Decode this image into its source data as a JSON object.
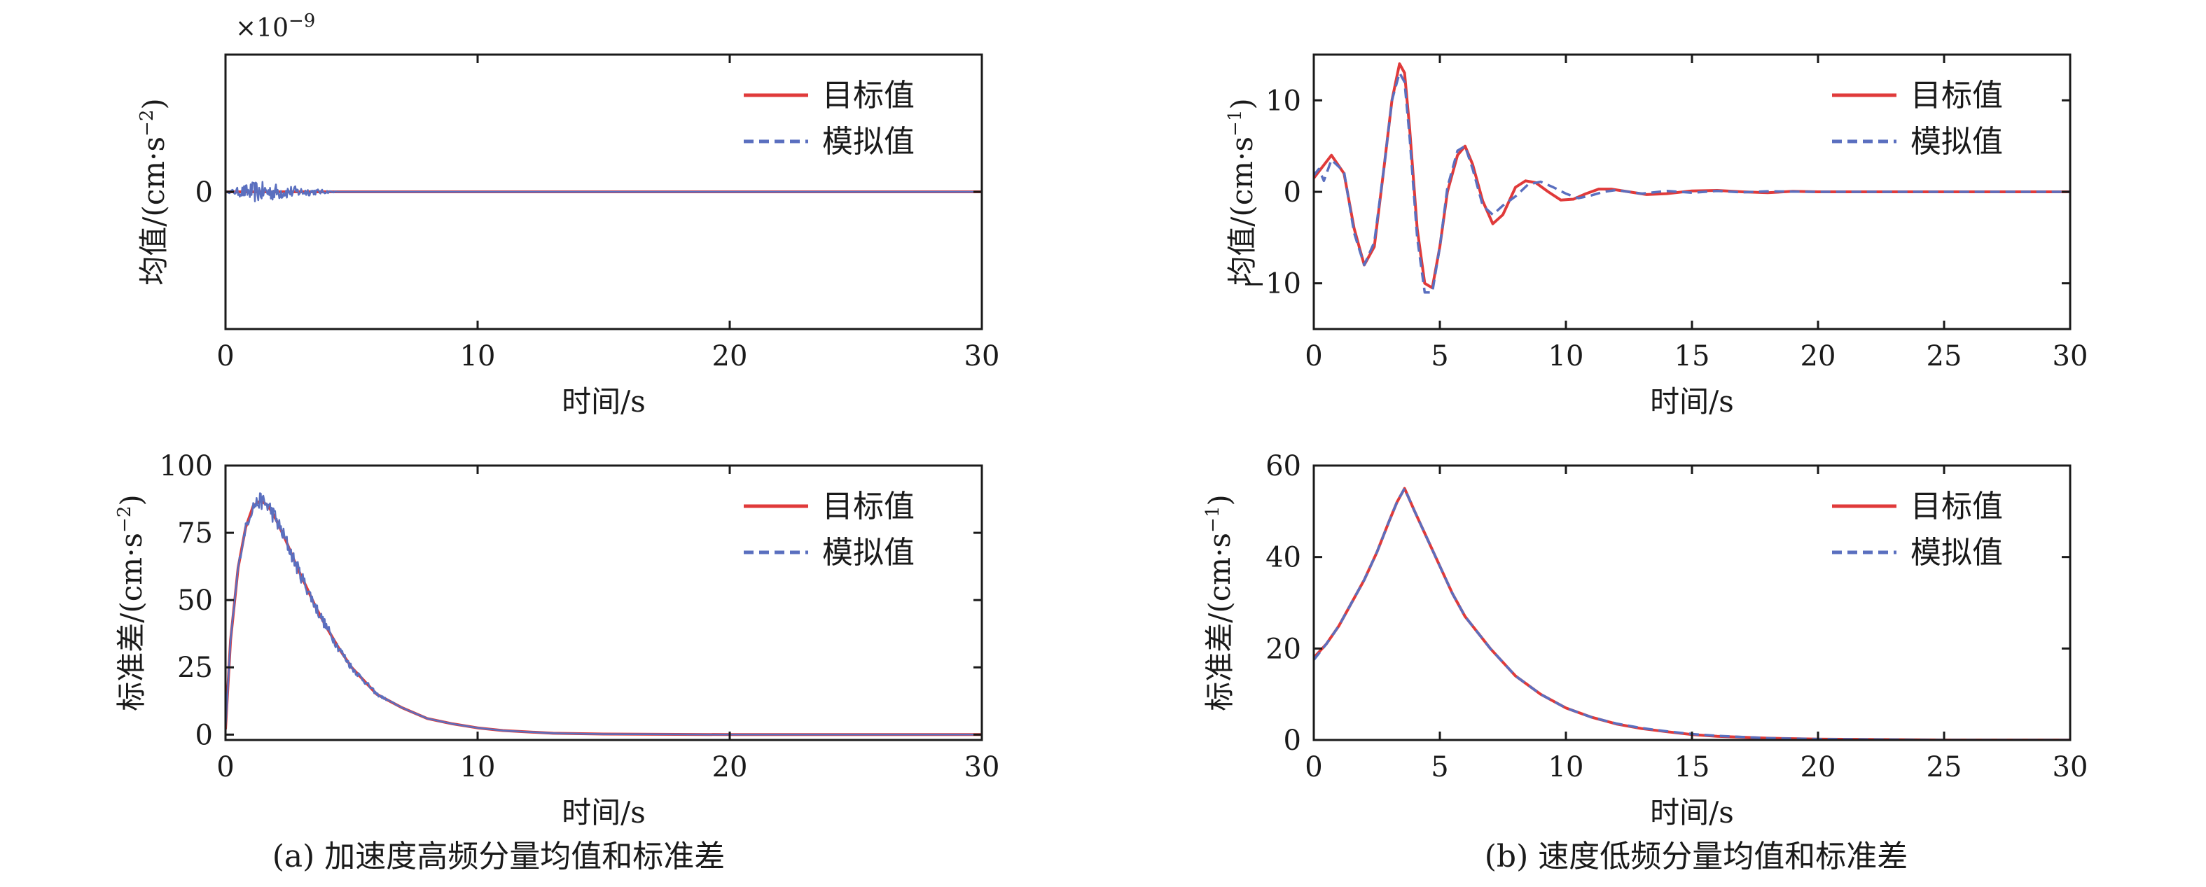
{
  "colors": {
    "target": "#e03a3a",
    "simulated": "#5a6fbf",
    "axis": "#1a1a1a"
  },
  "captions": {
    "a": "(a) 加速度高频分量均值和标准差",
    "b": "(b) 速度低频分量均值和标准差"
  },
  "chart_data": [
    {
      "id": "a-mean",
      "type": "line",
      "xlabel": "时间/s",
      "ylabel": "均值/(cm·s",
      "ylabel_exp": "−2",
      "ylabel_close": ")",
      "exponent_label": "×10",
      "exponent_power": "−9",
      "xlim": [
        0,
        30
      ],
      "ylim": [
        -1,
        1
      ],
      "xticks": [
        0,
        10,
        20,
        30
      ],
      "yticks": [
        0
      ],
      "legend": {
        "position": "top-right",
        "entries": [
          "目标值",
          "模拟值"
        ]
      },
      "series": [
        {
          "name": "目标值",
          "style": "solid",
          "x": [
            0,
            30
          ],
          "y": [
            0,
            0
          ]
        },
        {
          "name": "模拟值",
          "style": "dashed",
          "noise": {
            "x_end": 4.5,
            "peak_x": 1.2,
            "amp": 0.08
          },
          "x": [
            0,
            30
          ],
          "y": [
            0,
            0
          ]
        }
      ]
    },
    {
      "id": "b-mean",
      "type": "line",
      "xlabel": "时间/s",
      "ylabel": "均值/(cm·s",
      "ylabel_exp": "−1",
      "ylabel_close": ")",
      "xlim": [
        0,
        30
      ],
      "ylim": [
        -15,
        15
      ],
      "xticks": [
        0,
        5,
        10,
        15,
        20,
        25,
        30
      ],
      "yticks": [
        -10,
        0,
        10
      ],
      "legend": {
        "position": "top-right",
        "entries": [
          "目标值",
          "模拟值"
        ]
      },
      "series": [
        {
          "name": "目标值",
          "style": "solid",
          "x": [
            0,
            0.7,
            1.2,
            1.6,
            2.0,
            2.4,
            2.8,
            3.1,
            3.4,
            3.6,
            3.8,
            4.1,
            4.4,
            4.7,
            5.0,
            5.3,
            5.7,
            6.0,
            6.3,
            6.7,
            7.1,
            7.5,
            8.0,
            8.4,
            8.8,
            9.3,
            9.8,
            10.3,
            10.8,
            11.3,
            11.8,
            12.5,
            13.2,
            14.0,
            15.0,
            16.0,
            17.0,
            18.0,
            19.0,
            20.0,
            22.0,
            25.0,
            30.0
          ],
          "y": [
            1.5,
            4,
            2,
            -4,
            -8,
            -6,
            3,
            10,
            14,
            13,
            7,
            -4,
            -10,
            -10.5,
            -6,
            0,
            4,
            5,
            3,
            -1,
            -3.5,
            -2.5,
            0.5,
            1.2,
            1,
            0,
            -0.9,
            -0.8,
            -0.2,
            0.3,
            0.3,
            0,
            -0.3,
            -0.2,
            0.1,
            0.15,
            0,
            -0.1,
            0.05,
            0,
            0,
            0,
            0
          ]
        },
        {
          "name": "模拟值",
          "style": "dashed",
          "x": [
            0,
            0.2,
            0.4,
            0.7,
            1.2,
            1.6,
            2.0,
            2.4,
            2.8,
            3.1,
            3.4,
            3.6,
            3.8,
            4.1,
            4.4,
            4.7,
            5.0,
            5.3,
            5.7,
            6.0,
            6.3,
            6.7,
            7.1,
            7.5,
            8.0,
            8.5,
            9.0,
            9.5,
            10.0,
            10.5,
            11.0,
            11.5,
            12.0,
            13.0,
            14.0,
            15.0,
            16.0,
            17.0,
            18.0,
            20.0,
            25.0,
            30.0
          ],
          "y": [
            1.8,
            2.5,
            1.2,
            3.5,
            2.2,
            -4.5,
            -8,
            -5.5,
            3,
            10,
            13,
            12,
            6,
            -5,
            -11,
            -11,
            -6,
            0.5,
            4.5,
            5,
            2.5,
            -1.5,
            -2.5,
            -1.5,
            -0.5,
            0.8,
            1.1,
            0.5,
            -0.2,
            -0.7,
            -0.4,
            0,
            0.2,
            -0.2,
            0.1,
            -0.1,
            0.1,
            -0.05,
            0.05,
            0,
            0,
            0
          ]
        }
      ]
    },
    {
      "id": "a-std",
      "type": "line",
      "xlabel": "时间/s",
      "ylabel": "标准差/(cm·s",
      "ylabel_exp": "−2",
      "ylabel_close": ")",
      "xlim": [
        0,
        30
      ],
      "ylim": [
        -2,
        100
      ],
      "xticks": [
        0,
        10,
        20,
        30
      ],
      "yticks": [
        0,
        25,
        50,
        75,
        100
      ],
      "legend": {
        "position": "top-right",
        "entries": [
          "目标值",
          "模拟值"
        ]
      },
      "series": [
        {
          "name": "目标值",
          "style": "solid",
          "x": [
            0,
            0.2,
            0.5,
            0.8,
            1.1,
            1.4,
            1.7,
            2.0,
            2.4,
            2.8,
            3.2,
            3.6,
            4.0,
            4.5,
            5.0,
            5.5,
            6.0,
            7.0,
            8.0,
            9.0,
            10.0,
            11.0,
            12.0,
            13.0,
            15.0,
            20.0,
            30.0
          ],
          "y": [
            2,
            35,
            62,
            77,
            85,
            87,
            85,
            80,
            72,
            63,
            55,
            47,
            40,
            32,
            25,
            20,
            15,
            10,
            6,
            4,
            2.5,
            1.5,
            1,
            0.5,
            0.2,
            0,
            0
          ]
        },
        {
          "name": "模拟值",
          "style": "dashed",
          "noise": {
            "x_end": 7,
            "peak_x": 1.6,
            "amp": 3.5
          },
          "x": [
            0,
            0.2,
            0.5,
            0.8,
            1.1,
            1.4,
            1.7,
            2.0,
            2.4,
            2.8,
            3.2,
            3.6,
            4.0,
            4.5,
            5.0,
            5.5,
            6.0,
            7.0,
            8.0,
            9.0,
            10.0,
            11.0,
            12.0,
            13.0,
            15.0,
            20.0,
            30.0
          ],
          "y": [
            2,
            35,
            62,
            77,
            85,
            87,
            85,
            80,
            72,
            63,
            55,
            47,
            40,
            32,
            25,
            20,
            15,
            10,
            6,
            4,
            2.5,
            1.5,
            1,
            0.5,
            0.2,
            0,
            0
          ]
        }
      ]
    },
    {
      "id": "b-std",
      "type": "line",
      "xlabel": "时间/s",
      "ylabel": "标准差/(cm·s",
      "ylabel_exp": "−1",
      "ylabel_close": ")",
      "xlim": [
        0,
        30
      ],
      "ylim": [
        0,
        60
      ],
      "xticks": [
        0,
        5,
        10,
        15,
        20,
        25,
        30
      ],
      "yticks": [
        0,
        20,
        40,
        60
      ],
      "legend": {
        "position": "top-right",
        "entries": [
          "目标值",
          "模拟值"
        ]
      },
      "series": [
        {
          "name": "目标值",
          "style": "solid",
          "x": [
            0,
            0.5,
            1.0,
            1.5,
            2.0,
            2.5,
            3.0,
            3.3,
            3.6,
            4.0,
            4.5,
            5.0,
            5.5,
            6.0,
            7.0,
            8.0,
            9.0,
            10.0,
            11.0,
            12.0,
            13.0,
            14.0,
            15.0,
            16.0,
            18.0,
            20.0,
            25.0,
            30.0
          ],
          "y": [
            18,
            21,
            25,
            30,
            35,
            41,
            48,
            52,
            55,
            50,
            44,
            38,
            32,
            27,
            20,
            14,
            10,
            7,
            5,
            3.5,
            2.5,
            1.8,
            1.2,
            0.8,
            0.4,
            0.2,
            0,
            0
          ]
        },
        {
          "name": "模拟值",
          "style": "dashed",
          "x": [
            0,
            0.5,
            1.0,
            1.5,
            2.0,
            2.5,
            3.0,
            3.3,
            3.6,
            4.0,
            4.5,
            5.0,
            5.5,
            6.0,
            7.0,
            8.0,
            9.0,
            10.0,
            11.0,
            12.0,
            13.0,
            14.0,
            15.0,
            16.0,
            18.0,
            20.0,
            25.0,
            30.0
          ],
          "y": [
            17.5,
            21,
            25,
            30,
            35,
            41,
            48,
            52,
            55,
            50,
            44,
            38,
            32,
            27,
            20,
            14,
            10,
            7,
            5,
            3.6,
            2.6,
            1.9,
            1.3,
            0.9,
            0.4,
            0.2,
            0,
            0
          ]
        }
      ]
    }
  ]
}
